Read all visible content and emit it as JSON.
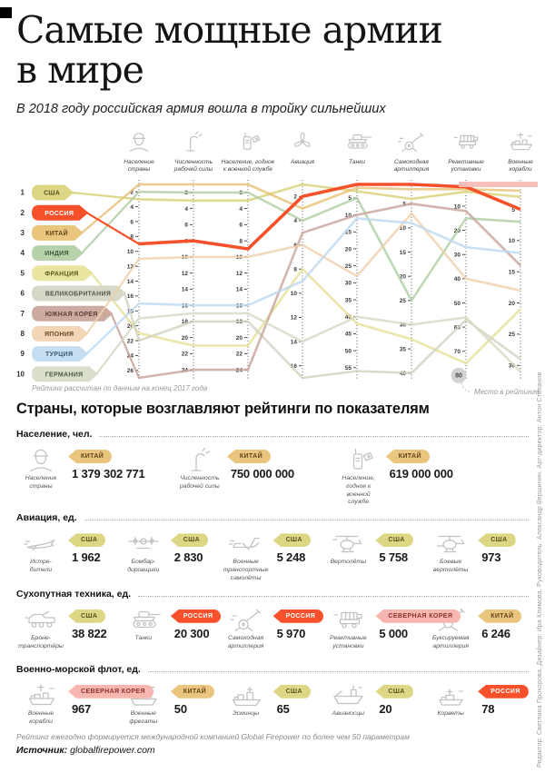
{
  "header": {
    "title": "Самые мощные армии\nв мире",
    "subtitle": "В 2018 году российская армия вошла в тройку сильнейших"
  },
  "chart_data": {
    "type": "line",
    "subtype": "bump-ranking",
    "note": "Рейтинг рассчитан по данным на конец 2017 года",
    "callout_label": "Место в рейтинге",
    "callout_tick": {
      "column_index": 6,
      "value": 80
    },
    "columns": [
      {
        "label": "Население\nстраны",
        "icon": "person-icon",
        "tick_from": 2,
        "tick_to": 26,
        "tick_step": 2,
        "domain_max": 27
      },
      {
        "label": "Численность\nрабочей силы",
        "icon": "arm-icon",
        "tick_from": 2,
        "tick_to": 24,
        "tick_step": 2,
        "domain_max": 25
      },
      {
        "label": "Население, годное\nк военной службе",
        "icon": "radio-icon",
        "tick_from": 2,
        "tick_to": 24,
        "tick_step": 2,
        "domain_max": 25
      },
      {
        "label": "Авиация",
        "icon": "propeller-icon",
        "tick_from": 2,
        "tick_to": 16,
        "tick_step": 2,
        "domain_max": 17
      },
      {
        "label": "Танки",
        "icon": "tank-icon",
        "tick_from": 5,
        "tick_to": 55,
        "tick_step": 5,
        "domain_max": 58
      },
      {
        "label": "Самоходная\nартиллерия",
        "icon": "cannon-icon",
        "tick_from": 5,
        "tick_to": 40,
        "tick_step": 5,
        "domain_max": 41
      },
      {
        "label": "Реактивные\nустановки",
        "icon": "mlrs-icon",
        "tick_from": 10,
        "tick_to": 80,
        "tick_step": 10,
        "domain_max": 81
      },
      {
        "label": "Военные\nкорабли",
        "icon": "ship-icon",
        "tick_from": 5,
        "tick_to": 30,
        "tick_step": 5,
        "domain_max": 32
      }
    ],
    "countries": [
      {
        "rank": 1,
        "name": "США",
        "color": "#dcd685",
        "line_color": "#d8d176",
        "text_color": "#55511c",
        "ranks": [
          3,
          3,
          3,
          1,
          3,
          4,
          4,
          3
        ]
      },
      {
        "rank": 2,
        "name": "РОССИЯ",
        "color": "#f7512b",
        "line_color": "#f7512b",
        "text_color": "#ffffff",
        "highlight": true,
        "ranks": [
          9,
          8,
          9,
          2,
          1,
          1,
          2,
          5
        ]
      },
      {
        "rank": 3,
        "name": "КИТАЙ",
        "color": "#eac57e",
        "line_color": "#e8bf74",
        "text_color": "#5e431a",
        "ranks": [
          1,
          1,
          1,
          3,
          2,
          2,
          3,
          2
        ]
      },
      {
        "rank": 4,
        "name": "ИНДИЯ",
        "color": "#b5d2ab",
        "line_color": "#aecda3",
        "text_color": "#3c5a36",
        "ranks": [
          2,
          2,
          2,
          4,
          5,
          25,
          15,
          7
        ]
      },
      {
        "rank": 5,
        "name": "ФРАНЦИЯ",
        "color": "#e9e4a0",
        "line_color": "#e6e095",
        "text_color": "#5c5822",
        "ranks": [
          21,
          21,
          21,
          8,
          42,
          33,
          75,
          21
        ]
      },
      {
        "rank": 6,
        "name": "ВЕЛИКОБРИТАНИЯ",
        "color": "#d8d8c8",
        "line_color": "#d2d2bf",
        "text_color": "#54544a",
        "ranks": [
          22,
          18,
          18,
          17,
          56,
          40,
          57,
          29
        ]
      },
      {
        "rank": 7,
        "name": "ЮЖНАЯ КОРЕЯ",
        "color": "#cdaaa0",
        "line_color": "#c7a297",
        "text_color": "#5c3f38",
        "ranks": [
          27,
          24,
          24,
          5,
          10,
          5,
          12,
          14
        ]
      },
      {
        "rank": 8,
        "name": "ЯПОНИЯ",
        "color": "#f2d6b6",
        "line_color": "#efd0ac",
        "text_color": "#6b4a26",
        "ranks": [
          11,
          10,
          10,
          6,
          28,
          7,
          40,
          18
        ]
      },
      {
        "rank": 9,
        "name": "ТУРЦИЯ",
        "color": "#c6def2",
        "line_color": "#bed9f0",
        "text_color": "#3d5a74",
        "ranks": [
          17,
          16,
          16,
          9,
          11,
          9,
          27,
          12
        ]
      },
      {
        "rank": 10,
        "name": "ГЕРМАНИЯ",
        "color": "#dadfcc",
        "line_color": "#d4dac4",
        "text_color": "#4f5a42",
        "ranks": [
          19,
          17,
          17,
          14,
          40,
          30,
          56,
          31
        ]
      }
    ],
    "extra_leader": {
      "name": "СЕВЕРНАЯ КОРЕЯ",
      "color": "#f8bdb7",
      "rank": 1,
      "column_indices": [
        6,
        7
      ]
    }
  },
  "leaders": {
    "title": "Страны, которые возглавляют рейтинги по показателям",
    "sections": [
      {
        "title": "Население, чел.",
        "items": [
          {
            "icon": "person-icon",
            "label": "Население\nстраны",
            "country": "КИТАЙ",
            "value": "1 379 302 771"
          },
          {
            "icon": "arm-icon",
            "label": "Численность\nрабочей силы",
            "country": "КИТАЙ",
            "value": "750 000 000"
          },
          {
            "icon": "radio-icon",
            "label": "Население,\nгодное к военной\nслужбе",
            "country": "КИТАЙ",
            "value": "619 000 000"
          }
        ]
      },
      {
        "title": "Авиация, ед.",
        "items": [
          {
            "icon": "jet-icon",
            "label": "Истре-\nбители",
            "country": "США",
            "value": "1 962"
          },
          {
            "icon": "bomber-icon",
            "label": "Бомбар-\nдировщики",
            "country": "США",
            "value": "2 830"
          },
          {
            "icon": "transport-plane-icon",
            "label": "Военные\nтранспортные\nсамолёты",
            "country": "США",
            "value": "5 248"
          },
          {
            "icon": "helicopter-icon",
            "label": "Вертолёты",
            "country": "США",
            "value": "5 758"
          },
          {
            "icon": "attack-helicopter-icon",
            "label": "Боевые\nвертолёты",
            "country": "США",
            "value": "973"
          }
        ]
      },
      {
        "title": "Сухопутная техника, ед.",
        "items": [
          {
            "icon": "apc-icon",
            "label": "Броне-\nтранспортёры",
            "country": "США",
            "value": "38 822"
          },
          {
            "icon": "tank-icon",
            "label": "Танки",
            "country": "РОССИЯ",
            "value": "20 300"
          },
          {
            "icon": "cannon-icon",
            "label": "Самоходная\nартиллерия",
            "country": "РОССИЯ",
            "value": "5 970"
          },
          {
            "icon": "mlrs-icon",
            "label": "Реактивные\nустановки",
            "country": "СЕВЕРНАЯ КОРЕЯ",
            "value": "5 000"
          },
          {
            "icon": "towed-artillery-icon",
            "label": "Буксируемая\nартиллерия",
            "country": "КИТАЙ",
            "value": "6 246"
          }
        ]
      },
      {
        "title": "Военно-морской флот, ед.",
        "items": [
          {
            "icon": "ship-icon",
            "label": "Военные\nкорабли",
            "country": "СЕВЕРНАЯ КОРЕЯ",
            "value": "967"
          },
          {
            "icon": "frigate-icon",
            "label": "Военные\nфрегаты",
            "country": "КИТАЙ",
            "value": "50"
          },
          {
            "icon": "destroyer-icon",
            "label": "Эсминцы",
            "country": "США",
            "value": "65"
          },
          {
            "icon": "carrier-icon",
            "label": "Авианосцы",
            "country": "США",
            "value": "20"
          },
          {
            "icon": "corvette-icon",
            "label": "Корветы",
            "country": "РОССИЯ",
            "value": "78"
          }
        ]
      }
    ]
  },
  "pill_colors": {
    "США": {
      "bg": "#dcd685",
      "text": "#55511c"
    },
    "РОССИЯ": {
      "bg": "#f7512b",
      "text": "#ffffff"
    },
    "КИТАЙ": {
      "bg": "#eac57e",
      "text": "#5e431a"
    },
    "СЕВЕРНАЯ КОРЕЯ": {
      "bg": "#f8b6b1",
      "text": "#8c322c"
    }
  },
  "footer": {
    "note": "Рейтинг ежегодно формируется международной компанией Global Firepower по более чем 50 параметрам",
    "source_label": "Источник:",
    "source_value": "globalfirepower.com",
    "credits": "Редактор: Светлана Прохорова. Дизайнер: Ира Климова. Руководитель: Александр Вершинин. Арт-директор: Антон Степанов"
  }
}
